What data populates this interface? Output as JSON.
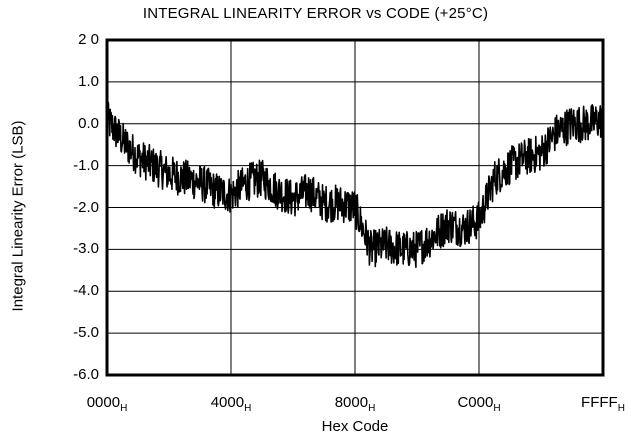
{
  "chart_data": {
    "type": "line",
    "title": "INTEGRAL LINEARITY ERROR vs CODE (+25°C)",
    "xlabel": "Hex Code",
    "ylabel": "Integral Linearity Error (LSB)",
    "ylim": [
      -6.0,
      2.0
    ],
    "xlim": [
      0,
      65535
    ],
    "grid": true,
    "yticks": [
      {
        "value": 2.0,
        "label": "2 0"
      },
      {
        "value": 1.0,
        "label": "1.0"
      },
      {
        "value": 0.0,
        "label": "0.0"
      },
      {
        "value": -1.0,
        "label": "-1.0"
      },
      {
        "value": -2.0,
        "label": "-2.0"
      },
      {
        "value": -3.0,
        "label": "-3.0"
      },
      {
        "value": -4.0,
        "label": "-4.0"
      },
      {
        "value": -5.0,
        "label": "-5.0"
      },
      {
        "value": -6.0,
        "label": "-6.0"
      }
    ],
    "xticks": [
      {
        "value": 0,
        "label": "0000",
        "sub": "H"
      },
      {
        "value": 16384,
        "label": "4000",
        "sub": "H"
      },
      {
        "value": 32768,
        "label": "8000",
        "sub": "H"
      },
      {
        "value": 49152,
        "label": "C000",
        "sub": "H"
      },
      {
        "value": 65535,
        "label": "FFFF",
        "sub": "H"
      }
    ],
    "series": [
      {
        "color": "#000000",
        "noise_amplitude": 0.45,
        "x": [
          0,
          2048,
          4096,
          6144,
          8192,
          10240,
          12288,
          14336,
          16384,
          18432,
          20480,
          22528,
          24576,
          26624,
          28672,
          30720,
          32768,
          34816,
          36864,
          38912,
          40960,
          43008,
          45056,
          47104,
          49152,
          51200,
          53248,
          55296,
          57344,
          59392,
          61440,
          63488,
          65535
        ],
        "y": [
          0.1,
          -0.4,
          -0.8,
          -1.0,
          -1.2,
          -1.3,
          -1.4,
          -1.6,
          -1.7,
          -1.4,
          -1.3,
          -1.6,
          -1.8,
          -1.6,
          -1.9,
          -1.9,
          -2.0,
          -3.0,
          -2.9,
          -3.0,
          -3.0,
          -2.7,
          -2.4,
          -2.5,
          -2.3,
          -1.3,
          -1.0,
          -0.8,
          -0.7,
          -0.2,
          0.0,
          0.0,
          0.1
        ]
      }
    ]
  }
}
